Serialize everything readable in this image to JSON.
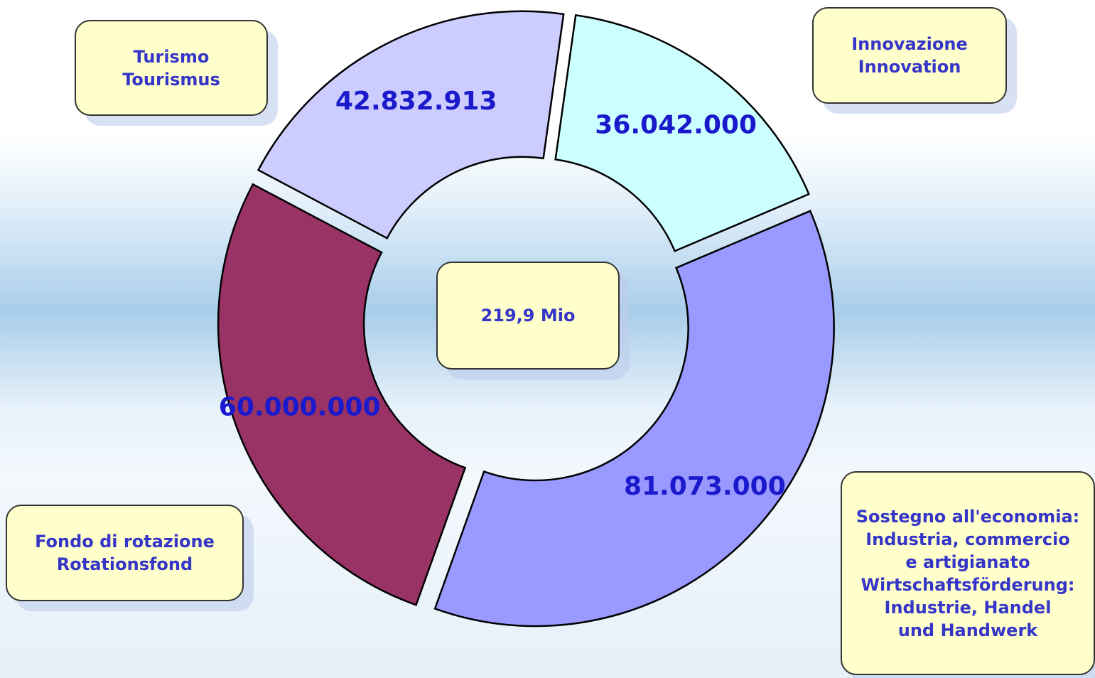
{
  "chart_data": {
    "type": "donut",
    "categories": [
      "Innovazione\nInnovation",
      "Sostegno all'economia:\nIndustria, commercio\ne artigianato\nWirtschaftsförderung:\nIndustrie, Handel\nund Handwerk",
      "Fondo di rotazione\nRotationsfond",
      "Turismo\nTourismus"
    ],
    "values": [
      36042000,
      81073000,
      60000000,
      42832913
    ],
    "value_labels": [
      "36.042.000",
      "81.073.000",
      "60.000.000",
      "42.832.913"
    ],
    "colors": [
      "#ccffff",
      "#9999ff",
      "#993366",
      "#ccccff"
    ],
    "center_label": "219,9 Mio"
  }
}
